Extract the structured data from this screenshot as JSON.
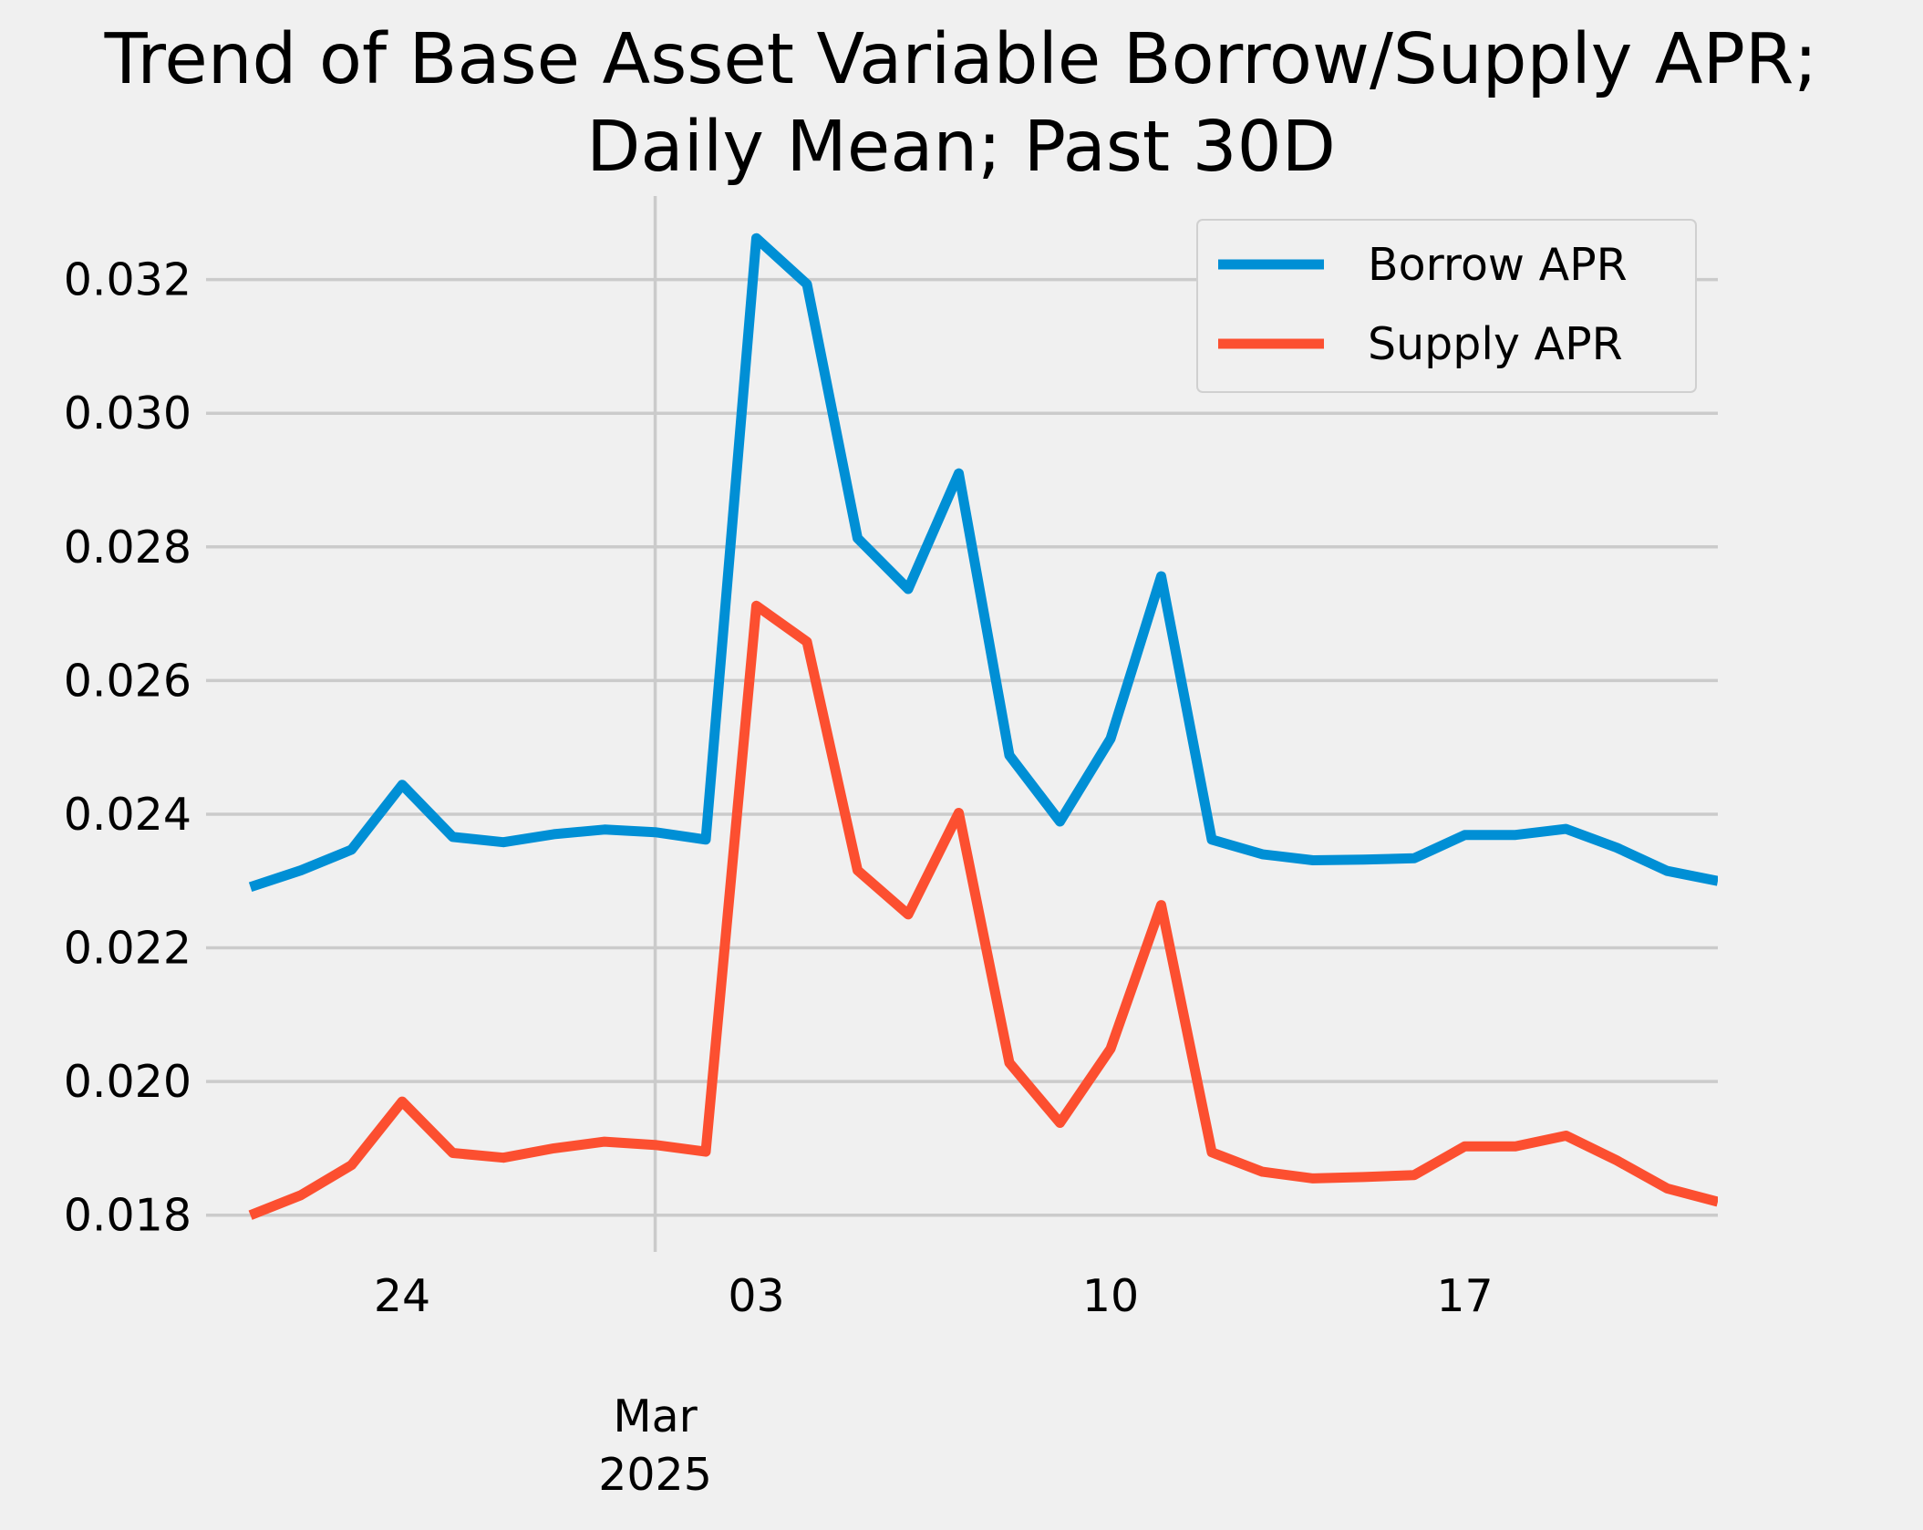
{
  "chart_data": {
    "type": "line",
    "title": "Trend of Base Asset Variable Borrow/Supply APR;\nDaily Mean; Past 30D",
    "title_lines": [
      "Trend of Base Asset Variable Borrow/Supply APR;",
      "Daily Mean; Past 30D"
    ],
    "xlabel": "",
    "ylabel": "",
    "x": [
      "2025-02-21",
      "2025-02-22",
      "2025-02-23",
      "2025-02-24",
      "2025-02-25",
      "2025-02-26",
      "2025-02-27",
      "2025-02-28",
      "2025-03-01",
      "2025-03-02",
      "2025-03-03",
      "2025-03-04",
      "2025-03-05",
      "2025-03-06",
      "2025-03-07",
      "2025-03-08",
      "2025-03-09",
      "2025-03-10",
      "2025-03-11",
      "2025-03-12",
      "2025-03-13",
      "2025-03-14",
      "2025-03-15",
      "2025-03-16",
      "2025-03-17",
      "2025-03-18",
      "2025-03-19",
      "2025-03-20",
      "2025-03-21",
      "2025-03-22"
    ],
    "x_range": [
      "2025-02-20 03:00",
      "2025-03-22"
    ],
    "series": [
      {
        "name": "Borrow APR",
        "color": "#008fd5",
        "values": [
          0.02291,
          0.02316,
          0.02347,
          0.02444,
          0.02366,
          0.02358,
          0.0237,
          0.02377,
          0.02373,
          0.02362,
          0.03262,
          0.03193,
          0.02813,
          0.02737,
          0.0291,
          0.02488,
          0.02389,
          0.02513,
          0.02756,
          0.02362,
          0.0234,
          0.02331,
          0.02332,
          0.02334,
          0.02369,
          0.02369,
          0.02378,
          0.0235,
          0.02315,
          0.023
        ]
      },
      {
        "name": "Supply APR",
        "color": "#fc4f30",
        "values": [
          0.018,
          0.0183,
          0.01875,
          0.0197,
          0.01893,
          0.01886,
          0.019,
          0.0191,
          0.01905,
          0.01895,
          0.02712,
          0.02658,
          0.02316,
          0.0225,
          0.02402,
          0.02028,
          0.01938,
          0.02049,
          0.02264,
          0.01894,
          0.01865,
          0.01855,
          0.01857,
          0.0186,
          0.01903,
          0.01903,
          0.01919,
          0.01882,
          0.0184,
          0.0182
        ]
      }
    ],
    "ylim": [
      0.01745,
      0.03325
    ],
    "yticks": [
      0.018,
      0.02,
      0.022,
      0.024,
      0.026,
      0.028,
      0.03,
      0.032
    ],
    "ytick_labels": [
      "0.018",
      "0.020",
      "0.022",
      "0.024",
      "0.026",
      "0.028",
      "0.030",
      "0.032"
    ],
    "xticks_minor": [
      {
        "date": "2025-02-24",
        "label": "24"
      },
      {
        "date": "2025-03-03",
        "label": "03"
      },
      {
        "date": "2025-03-10",
        "label": "10"
      },
      {
        "date": "2025-03-17",
        "label": "17"
      }
    ],
    "xtick_major": {
      "date": "2025-03-01",
      "label_lines": [
        "Mar",
        "2025"
      ]
    },
    "grid": true,
    "legend_position": "top-right"
  }
}
